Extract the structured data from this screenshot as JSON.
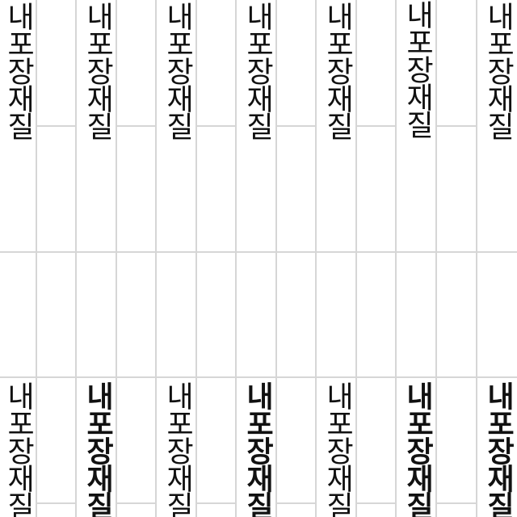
{
  "text": {
    "label": "내포장재질"
  },
  "colors": {
    "background": "#ffffff",
    "grid_line": "#d6d6d6",
    "text": "#111111"
  },
  "label_weights": {
    "top": [
      400,
      400,
      400,
      400,
      400,
      500,
      400
    ],
    "bottom": [
      400,
      700,
      500,
      700,
      500,
      700,
      700
    ]
  }
}
